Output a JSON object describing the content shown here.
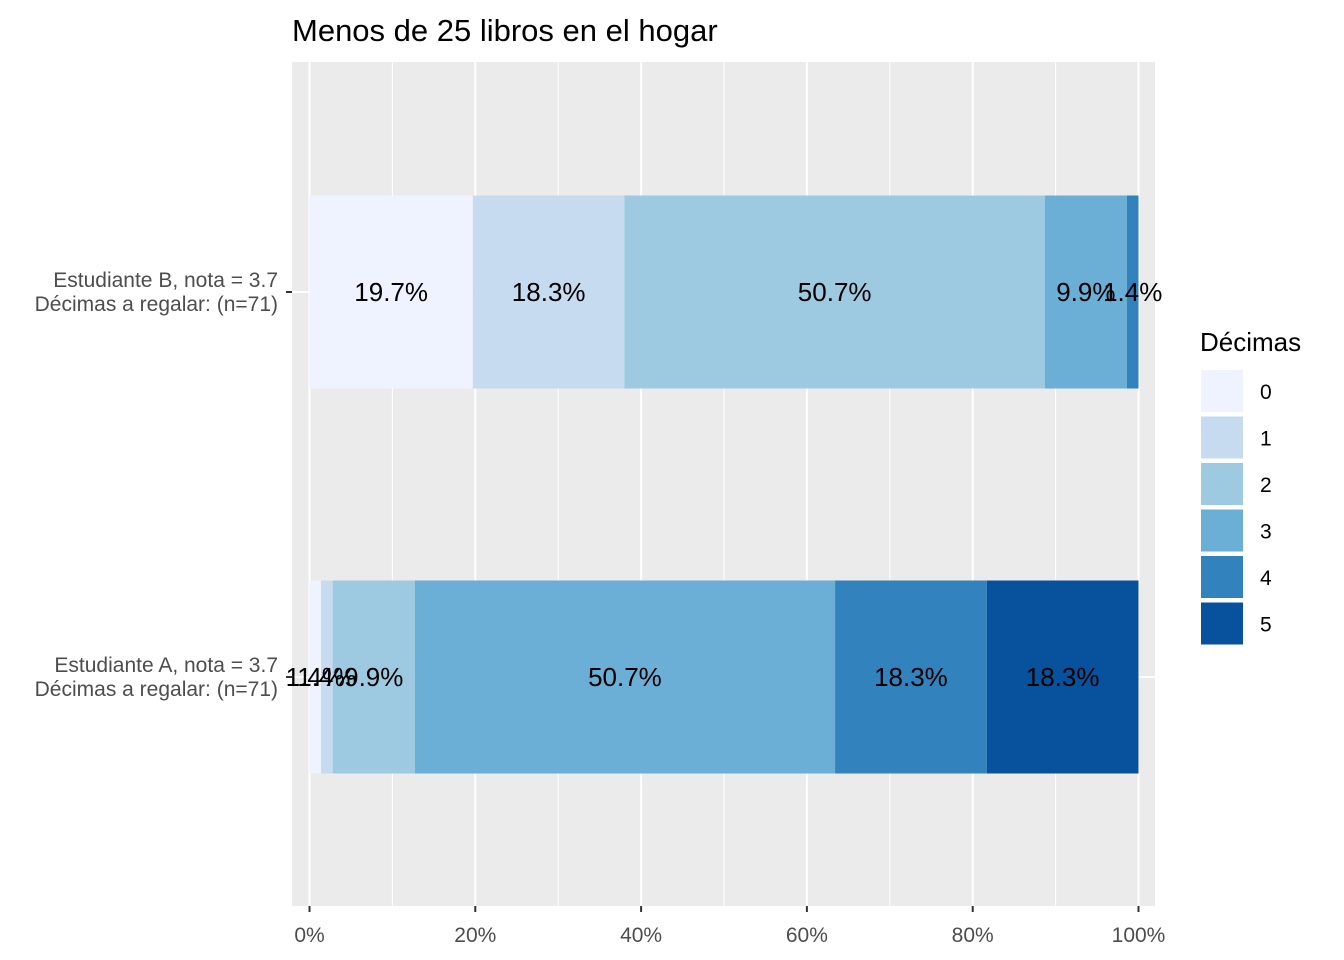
{
  "chart_data": {
    "type": "bar",
    "orientation": "horizontal",
    "stacked": "percent",
    "title": "Menos de 25 libros en el hogar",
    "xlabel": "",
    "ylabel": "",
    "xlim": [
      0,
      100
    ],
    "x_ticks": [
      "0%",
      "20%",
      "40%",
      "60%",
      "80%",
      "100%"
    ],
    "grid": true,
    "legend_position": "right",
    "legend_title": "Décimas",
    "series": [
      {
        "name": "0",
        "color": "#eff3ff"
      },
      {
        "name": "1",
        "color": "#c6dbef"
      },
      {
        "name": "2",
        "color": "#9ecae1"
      },
      {
        "name": "3",
        "color": "#6baed6"
      },
      {
        "name": "4",
        "color": "#3182bd"
      },
      {
        "name": "5",
        "color": "#08519c"
      }
    ],
    "categories": [
      {
        "label_lines": [
          "Estudiante B, nota = 3.7",
          "Décimas a regalar: (n=71)"
        ],
        "values": [
          19.7,
          18.3,
          50.7,
          9.9,
          1.4,
          0
        ],
        "labels": [
          "19.7%",
          "18.3%",
          "50.7%",
          "9.9%",
          "1.4%",
          ""
        ]
      },
      {
        "label_lines": [
          "Estudiante A, nota = 3.7",
          "Décimas a regalar: (n=71)"
        ],
        "values": [
          1.4,
          1.4,
          9.9,
          50.7,
          18.3,
          18.3
        ],
        "labels": [
          "1.4%",
          "1.4%",
          "9.9%",
          "50.7%",
          "18.3%",
          "18.3%"
        ]
      }
    ]
  }
}
